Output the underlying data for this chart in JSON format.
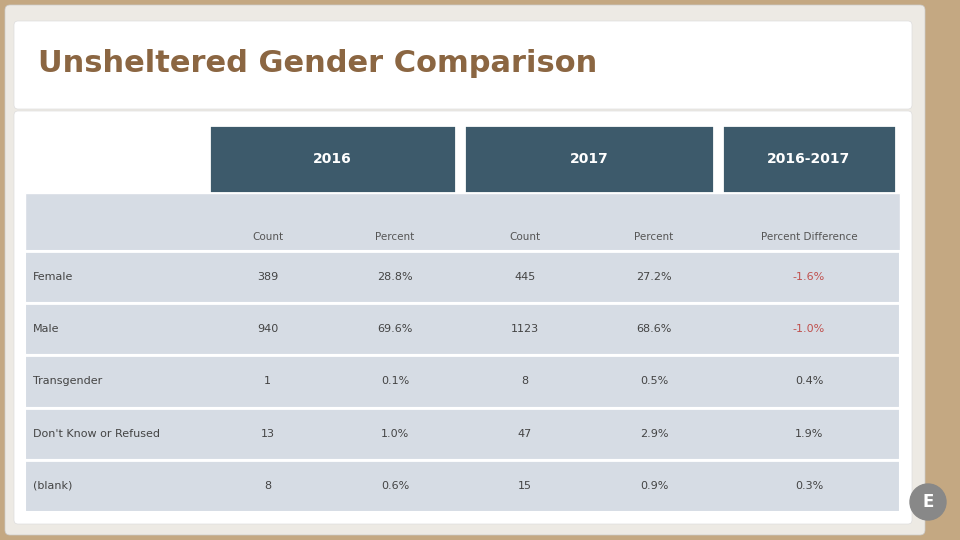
{
  "title": "Unsheltered Gender Comparison",
  "title_color": "#8B6642",
  "title_fontsize": 22,
  "background_outer": "#C4A882",
  "header_bg": "#3D5A6B",
  "header_text_color": "#FFFFFF",
  "subheader_bg": "#D6DCE4",
  "subheader_text_color": "#555555",
  "data_row_bg": "#D6DCE4",
  "cell_text_color": "#444444",
  "diff_negative_color": "#C0504D",
  "diff_positive_color": "#444444",
  "sub_headers": [
    "Count",
    "Percent",
    "Count",
    "Percent",
    "Percent Difference"
  ],
  "row_labels": [
    "Female",
    "Male",
    "Transgender",
    "Don't Know or Refused",
    "(blank)"
  ],
  "data": [
    [
      "389",
      "28.8%",
      "445",
      "27.2%",
      "-1.6%"
    ],
    [
      "940",
      "69.6%",
      "1123",
      "68.6%",
      "-1.0%"
    ],
    [
      "1",
      "0.1%",
      "8",
      "0.5%",
      "0.4%"
    ],
    [
      "13",
      "1.0%",
      "47",
      "2.9%",
      "1.9%"
    ],
    [
      "8",
      "0.6%",
      "15",
      "0.9%",
      "0.3%"
    ]
  ],
  "negative_diffs": [
    "-1.6%",
    "-1.0%"
  ],
  "e_badge_color": "#888888",
  "e_badge_text": "E",
  "slide_bg": "#EDEAE4",
  "white_box_bg": "#FFFFFF",
  "table_box_bg": "#FAFAF8"
}
